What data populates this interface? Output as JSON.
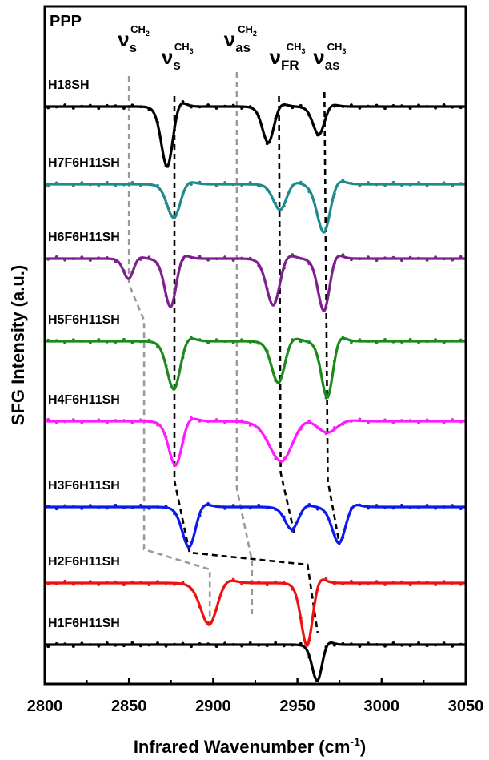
{
  "chart_data": {
    "type": "line",
    "panel_label": "PPP",
    "xlabel": "Infrared Wavenumber (cm",
    "xlabel_sup": "-1",
    "xlabel_close": ")",
    "ylabel": "SFG Intensity (a.u.)",
    "xlim": [
      2800,
      3050
    ],
    "xticks": [
      "2800",
      "2850",
      "2900",
      "2950",
      "3000",
      "3050"
    ],
    "mode_labels": [
      {
        "name": "ν_s CH2",
        "nu": "ν",
        "sub": "s",
        "sup": "CH",
        "sup_sub": "2"
      },
      {
        "name": "ν_s CH3",
        "nu": "ν",
        "sub": "s",
        "sup": "CH",
        "sup_sub": "3"
      },
      {
        "name": "ν_as CH2",
        "nu": "ν",
        "sub": "as",
        "sup": "CH",
        "sup_sub": "2"
      },
      {
        "name": "ν_FR CH3",
        "nu": "ν",
        "sub": "FR",
        "sup": "CH",
        "sup_sub": "3"
      },
      {
        "name": "ν_as CH3",
        "nu": "ν",
        "sub": "as",
        "sup": "CH",
        "sup_sub": "3"
      }
    ],
    "series": [
      {
        "name": "H18SH",
        "color": "#000000",
        "peaks": [
          {
            "center": 2873,
            "width": 3.5,
            "dip": 75
          },
          {
            "center": 2933,
            "width": 3.5,
            "dip": 45
          },
          {
            "center": 2963,
            "width": 3.5,
            "dip": 35
          }
        ]
      },
      {
        "name": "H7F6H11SH",
        "color": "#1f8a8a",
        "peaks": [
          {
            "center": 2877,
            "width": 4,
            "dip": 42
          },
          {
            "center": 2940,
            "width": 4,
            "dip": 32
          },
          {
            "center": 2966,
            "width": 4,
            "dip": 60
          }
        ]
      },
      {
        "name": "H6F6H11SH",
        "color": "#7d1f8c",
        "peaks": [
          {
            "center": 2850,
            "width": 3,
            "dip": 25
          },
          {
            "center": 2875,
            "width": 3.5,
            "dip": 60
          },
          {
            "center": 2936,
            "width": 4,
            "dip": 58
          },
          {
            "center": 2966,
            "width": 3.5,
            "dip": 65
          }
        ]
      },
      {
        "name": "H5F6H11SH",
        "color": "#1a8a1a",
        "peaks": [
          {
            "center": 2877,
            "width": 4,
            "dip": 60
          },
          {
            "center": 2939,
            "width": 4,
            "dip": 52
          },
          {
            "center": 2968,
            "width": 3.5,
            "dip": 70
          }
        ]
      },
      {
        "name": "H4F6H11SH",
        "color": "#ff1aff",
        "peaks": [
          {
            "center": 2878,
            "width": 4,
            "dip": 55
          },
          {
            "center": 2941,
            "width": 7,
            "dip": 50
          },
          {
            "center": 2968,
            "width": 6,
            "dip": 15
          }
        ]
      },
      {
        "name": "H3F6H11SH",
        "color": "#0a1aee",
        "peaks": [
          {
            "center": 2886,
            "width": 4,
            "dip": 50
          },
          {
            "center": 2947,
            "width": 4,
            "dip": 28
          },
          {
            "center": 2975,
            "width": 4,
            "dip": 45
          }
        ]
      },
      {
        "name": "H2F6H11SH",
        "color": "#ee1111",
        "peaks": [
          {
            "center": 2898,
            "width": 5,
            "dip": 52
          },
          {
            "center": 2956,
            "width": 3.5,
            "dip": 78
          }
        ]
      },
      {
        "name": "H1F6H11SH",
        "color": "#000000",
        "peaks": [
          {
            "center": 2962,
            "width": 3,
            "dip": 45
          }
        ]
      }
    ]
  }
}
